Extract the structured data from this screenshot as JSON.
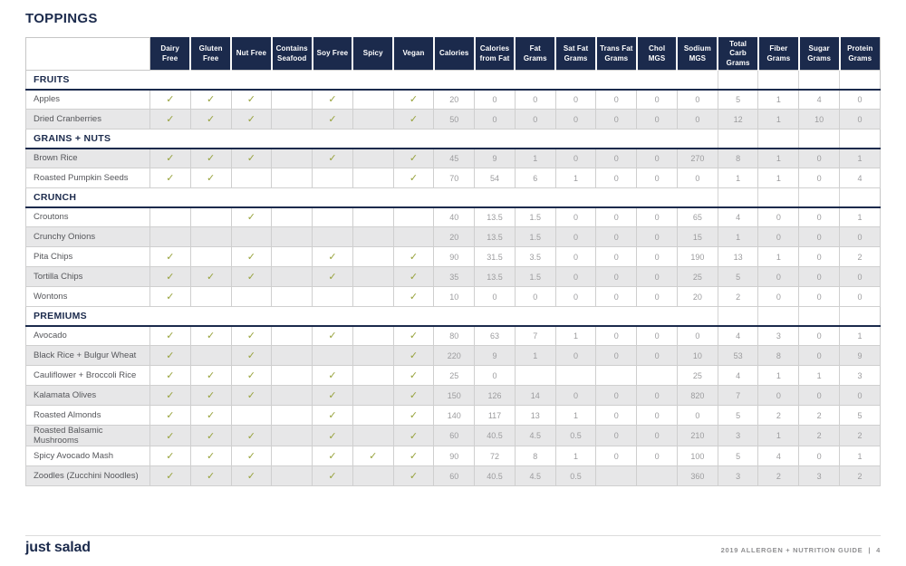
{
  "title": "TOPPINGS",
  "check_glyph": "✓",
  "colors": {
    "navy": "#1b2a4c",
    "check_green": "#97a23c",
    "row_shade": "#e7e7e8",
    "value_gray": "#9c9c9e"
  },
  "columns": [
    "Dairy Free",
    "Gluten Free",
    "Nut Free",
    "Contains Seafood",
    "Soy Free",
    "Spicy",
    "Vegan",
    "Calories",
    "Calories from Fat",
    "Fat Grams",
    "Sat Fat Grams",
    "Trans Fat Grams",
    "Chol MGS",
    "Sodium MGS",
    "Total Carb Grams",
    "Fiber Grams",
    "Sugar Grams",
    "Protein Grams"
  ],
  "sections": [
    {
      "name": "FRUITS",
      "rows": [
        {
          "name": "Apples",
          "shaded": false,
          "checks": [
            1,
            1,
            1,
            0,
            1,
            0,
            1
          ],
          "values": [
            "20",
            "0",
            "0",
            "0",
            "0",
            "0",
            "0",
            "5",
            "1",
            "4",
            "0"
          ]
        },
        {
          "name": "Dried Cranberries",
          "shaded": true,
          "checks": [
            1,
            1,
            1,
            0,
            1,
            0,
            1
          ],
          "values": [
            "50",
            "0",
            "0",
            "0",
            "0",
            "0",
            "0",
            "12",
            "1",
            "10",
            "0"
          ]
        }
      ]
    },
    {
      "name": "GRAINS + NUTS",
      "rows": [
        {
          "name": "Brown Rice",
          "shaded": true,
          "checks": [
            1,
            1,
            1,
            0,
            1,
            0,
            1
          ],
          "values": [
            "45",
            "9",
            "1",
            "0",
            "0",
            "0",
            "270",
            "8",
            "1",
            "0",
            "1"
          ]
        },
        {
          "name": "Roasted Pumpkin Seeds",
          "shaded": false,
          "checks": [
            1,
            1,
            0,
            0,
            0,
            0,
            1
          ],
          "values": [
            "70",
            "54",
            "6",
            "1",
            "0",
            "0",
            "0",
            "1",
            "1",
            "0",
            "4"
          ]
        }
      ]
    },
    {
      "name": "CRUNCH",
      "rows": [
        {
          "name": "Croutons",
          "shaded": false,
          "checks": [
            0,
            0,
            1,
            0,
            0,
            0,
            0
          ],
          "values": [
            "40",
            "13.5",
            "1.5",
            "0",
            "0",
            "0",
            "65",
            "4",
            "0",
            "0",
            "1"
          ]
        },
        {
          "name": "Crunchy Onions",
          "shaded": true,
          "checks": [
            0,
            0,
            0,
            0,
            0,
            0,
            0
          ],
          "values": [
            "20",
            "13.5",
            "1.5",
            "0",
            "0",
            "0",
            "15",
            "1",
            "0",
            "0",
            "0"
          ]
        },
        {
          "name": "Pita Chips",
          "shaded": false,
          "checks": [
            1,
            0,
            1,
            0,
            1,
            0,
            1
          ],
          "values": [
            "90",
            "31.5",
            "3.5",
            "0",
            "0",
            "0",
            "190",
            "13",
            "1",
            "0",
            "2"
          ]
        },
        {
          "name": "Tortilla Chips",
          "shaded": true,
          "checks": [
            1,
            1,
            1,
            0,
            1,
            0,
            1
          ],
          "values": [
            "35",
            "13.5",
            "1.5",
            "0",
            "0",
            "0",
            "25",
            "5",
            "0",
            "0",
            "0"
          ]
        },
        {
          "name": "Wontons",
          "shaded": false,
          "checks": [
            1,
            0,
            0,
            0,
            0,
            0,
            1
          ],
          "values": [
            "10",
            "0",
            "0",
            "0",
            "0",
            "0",
            "20",
            "2",
            "0",
            "0",
            "0"
          ]
        }
      ]
    },
    {
      "name": "PREMIUMS",
      "rows": [
        {
          "name": "Avocado",
          "shaded": false,
          "checks": [
            1,
            1,
            1,
            0,
            1,
            0,
            1
          ],
          "values": [
            "80",
            "63",
            "7",
            "1",
            "0",
            "0",
            "0",
            "4",
            "3",
            "0",
            "1"
          ]
        },
        {
          "name": "Black Rice + Bulgur Wheat",
          "shaded": true,
          "checks": [
            1,
            0,
            1,
            0,
            0,
            0,
            1
          ],
          "values": [
            "220",
            "9",
            "1",
            "0",
            "0",
            "0",
            "10",
            "53",
            "8",
            "0",
            "9"
          ]
        },
        {
          "name": "Cauliflower + Broccoli Rice",
          "shaded": false,
          "checks": [
            1,
            1,
            1,
            0,
            1,
            0,
            1
          ],
          "values": [
            "25",
            "0",
            "",
            "",
            "",
            "",
            "25",
            "4",
            "1",
            "1",
            "3"
          ]
        },
        {
          "name": "Kalamata Olives",
          "shaded": true,
          "checks": [
            1,
            1,
            1,
            0,
            1,
            0,
            1
          ],
          "values": [
            "150",
            "126",
            "14",
            "0",
            "0",
            "0",
            "820",
            "7",
            "0",
            "0",
            "0"
          ]
        },
        {
          "name": "Roasted Almonds",
          "shaded": false,
          "checks": [
            1,
            1,
            0,
            0,
            1,
            0,
            1
          ],
          "values": [
            "140",
            "117",
            "13",
            "1",
            "0",
            "0",
            "0",
            "5",
            "2",
            "2",
            "5"
          ]
        },
        {
          "name": "Roasted Balsamic Mushrooms",
          "shaded": true,
          "checks": [
            1,
            1,
            1,
            0,
            1,
            0,
            1
          ],
          "values": [
            "60",
            "40.5",
            "4.5",
            "0.5",
            "0",
            "0",
            "210",
            "3",
            "1",
            "2",
            "2"
          ]
        },
        {
          "name": "Spicy Avocado Mash",
          "shaded": false,
          "checks": [
            1,
            1,
            1,
            0,
            1,
            1,
            1
          ],
          "values": [
            "90",
            "72",
            "8",
            "1",
            "0",
            "0",
            "100",
            "5",
            "4",
            "0",
            "1"
          ]
        },
        {
          "name": "Zoodles (Zucchini Noodles)",
          "shaded": true,
          "checks": [
            1,
            1,
            1,
            0,
            1,
            0,
            1
          ],
          "values": [
            "60",
            "40.5",
            "4.5",
            "0.5",
            "",
            "",
            "360",
            "3",
            "2",
            "3",
            "2"
          ]
        }
      ]
    }
  ],
  "footer": {
    "logo": "just salad",
    "guide_label": "2019 ALLERGEN + NUTRITION GUIDE",
    "separator": "|",
    "page_number": "4"
  }
}
